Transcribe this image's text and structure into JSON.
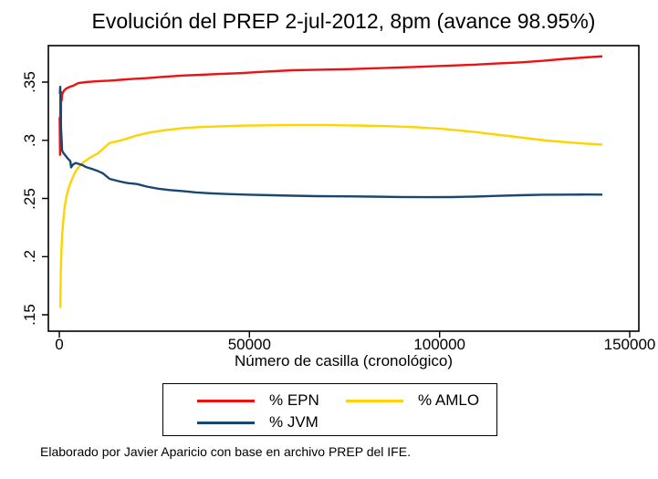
{
  "title": "Evolución del PREP 2-jul-2012, 8pm (avance 98.95%)",
  "footer": "Elaborado por Javier Aparicio con base en archivo PREP del IFE.",
  "colors": {
    "epn": "#ee1111",
    "amlo": "#ffd302",
    "jvm": "#1a476f",
    "axis": "#000000"
  },
  "legend": {
    "items": [
      {
        "label": "% EPN",
        "color": "#ee1111"
      },
      {
        "label": "% AMLO",
        "color": "#ffd302"
      },
      {
        "label": "% JVM",
        "color": "#1a476f"
      }
    ]
  },
  "chart_data": {
    "type": "line",
    "title": "Evolución del PREP 2-jul-2012, 8pm (avance 98.95%)",
    "xlabel": "Número de casilla (cronológico)",
    "ylabel": "",
    "xlim": [
      -2880,
      152400
    ],
    "ylim": [
      0.1359,
      0.3814
    ],
    "grid": false,
    "legend_position": "bottom",
    "x_ticks": [
      {
        "value": 0,
        "label": "0"
      },
      {
        "value": 50000,
        "label": "50000"
      },
      {
        "value": 100000,
        "label": "100000"
      },
      {
        "value": 150000,
        "label": "150000"
      }
    ],
    "y_ticks": [
      {
        "value": 0.15,
        "label": ".15"
      },
      {
        "value": 0.2,
        "label": ".2"
      },
      {
        "value": 0.25,
        "label": ".25"
      },
      {
        "value": 0.3,
        "label": ".3"
      },
      {
        "value": 0.35,
        "label": ".35"
      }
    ],
    "series": [
      {
        "name": "% EPN",
        "color": "#ee1111",
        "points": [
          [
            100,
            0.32
          ],
          [
            180,
            0.2875
          ],
          [
            280,
            0.3345
          ],
          [
            380,
            0.299
          ],
          [
            480,
            0.3415
          ],
          [
            600,
            0.334
          ],
          [
            750,
            0.3395
          ],
          [
            950,
            0.341
          ],
          [
            1200,
            0.3425
          ],
          [
            1600,
            0.344
          ],
          [
            2100,
            0.345
          ],
          [
            2800,
            0.346
          ],
          [
            3800,
            0.3472
          ],
          [
            5000,
            0.3492
          ],
          [
            7000,
            0.35
          ],
          [
            9000,
            0.3506
          ],
          [
            11000,
            0.351
          ],
          [
            13000,
            0.3513
          ],
          [
            16000,
            0.352
          ],
          [
            19000,
            0.3527
          ],
          [
            22800,
            0.3534
          ],
          [
            27000,
            0.3545
          ],
          [
            32400,
            0.3557
          ],
          [
            37200,
            0.3563
          ],
          [
            42000,
            0.357
          ],
          [
            48000,
            0.3578
          ],
          [
            54000,
            0.359
          ],
          [
            61200,
            0.3602
          ],
          [
            68000,
            0.3607
          ],
          [
            75600,
            0.3612
          ],
          [
            85000,
            0.3621
          ],
          [
            94000,
            0.3631
          ],
          [
            101000,
            0.364
          ],
          [
            109000,
            0.365
          ],
          [
            115000,
            0.366
          ],
          [
            121000,
            0.367
          ],
          [
            127000,
            0.3683
          ],
          [
            133000,
            0.37
          ],
          [
            138000,
            0.3712
          ],
          [
            142800,
            0.3722
          ]
        ]
      },
      {
        "name": "% AMLO",
        "color": "#ffd302",
        "points": [
          [
            250,
            0.156
          ],
          [
            300,
            0.17
          ],
          [
            400,
            0.19
          ],
          [
            550,
            0.205
          ],
          [
            750,
            0.218
          ],
          [
            1000,
            0.2295
          ],
          [
            1400,
            0.2425
          ],
          [
            1900,
            0.252
          ],
          [
            2500,
            0.2595
          ],
          [
            3200,
            0.2655
          ],
          [
            4000,
            0.2715
          ],
          [
            4800,
            0.2758
          ],
          [
            6000,
            0.2802
          ],
          [
            7200,
            0.2832
          ],
          [
            8400,
            0.2858
          ],
          [
            10000,
            0.2885
          ],
          [
            11500,
            0.2925
          ],
          [
            13200,
            0.2977
          ],
          [
            15000,
            0.299
          ],
          [
            17500,
            0.3012
          ],
          [
            20400,
            0.3042
          ],
          [
            24000,
            0.3068
          ],
          [
            28000,
            0.3088
          ],
          [
            32400,
            0.3104
          ],
          [
            37000,
            0.3114
          ],
          [
            42000,
            0.312
          ],
          [
            48000,
            0.3126
          ],
          [
            55000,
            0.3129
          ],
          [
            62000,
            0.3131
          ],
          [
            70000,
            0.3131
          ],
          [
            78000,
            0.3128
          ],
          [
            86000,
            0.3122
          ],
          [
            94000,
            0.3113
          ],
          [
            101000,
            0.3098
          ],
          [
            109000,
            0.3072
          ],
          [
            116000,
            0.3045
          ],
          [
            122000,
            0.3022
          ],
          [
            128000,
            0.2998
          ],
          [
            134000,
            0.2982
          ],
          [
            139000,
            0.297
          ],
          [
            142800,
            0.2963
          ]
        ]
      },
      {
        "name": "% JVM",
        "color": "#1a476f",
        "points": [
          [
            150,
            0.34
          ],
          [
            250,
            0.346
          ],
          [
            350,
            0.322
          ],
          [
            450,
            0.31
          ],
          [
            600,
            0.301
          ],
          [
            720,
            0.2912
          ],
          [
            1100,
            0.289
          ],
          [
            1500,
            0.2873
          ],
          [
            2300,
            0.2841
          ],
          [
            2900,
            0.282
          ],
          [
            3100,
            0.2768
          ],
          [
            3600,
            0.2792
          ],
          [
            4300,
            0.2805
          ],
          [
            5000,
            0.2798
          ],
          [
            6000,
            0.2788
          ],
          [
            7200,
            0.2768
          ],
          [
            8400,
            0.2756
          ],
          [
            10000,
            0.2738
          ],
          [
            11500,
            0.2715
          ],
          [
            13200,
            0.2669
          ],
          [
            14500,
            0.2658
          ],
          [
            16000,
            0.2645
          ],
          [
            18000,
            0.2632
          ],
          [
            20400,
            0.2624
          ],
          [
            23000,
            0.2602
          ],
          [
            26000,
            0.2584
          ],
          [
            29000,
            0.2572
          ],
          [
            32400,
            0.2564
          ],
          [
            36000,
            0.2552
          ],
          [
            40000,
            0.2544
          ],
          [
            44400,
            0.2538
          ],
          [
            50000,
            0.2532
          ],
          [
            56000,
            0.2528
          ],
          [
            61200,
            0.2524
          ],
          [
            68000,
            0.252
          ],
          [
            75000,
            0.2518
          ],
          [
            82000,
            0.2516
          ],
          [
            90000,
            0.2513
          ],
          [
            97000,
            0.2511
          ],
          [
            103000,
            0.2512
          ],
          [
            109000,
            0.2516
          ],
          [
            115000,
            0.2522
          ],
          [
            121000,
            0.2528
          ],
          [
            127000,
            0.2532
          ],
          [
            134000,
            0.2533
          ],
          [
            139000,
            0.2534
          ],
          [
            142800,
            0.2533
          ]
        ]
      }
    ]
  }
}
